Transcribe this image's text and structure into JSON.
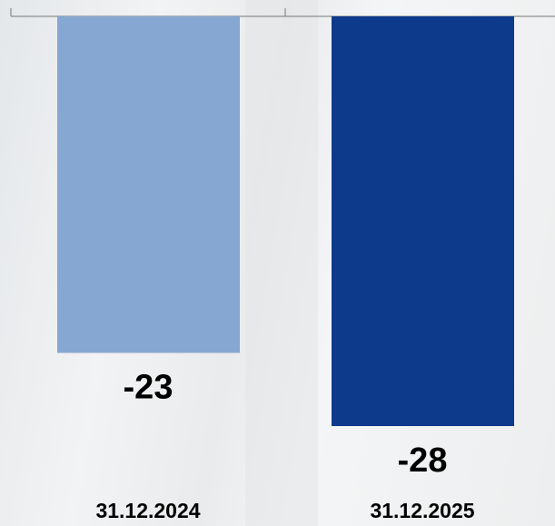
{
  "chart_data": {
    "type": "bar",
    "categories": [
      "31.12.2024",
      "31.12.2025"
    ],
    "series": [
      {
        "values": [
          -23,
          -28
        ],
        "colors": [
          "#86a7d1",
          "#0d3a8b"
        ]
      }
    ]
  }
}
